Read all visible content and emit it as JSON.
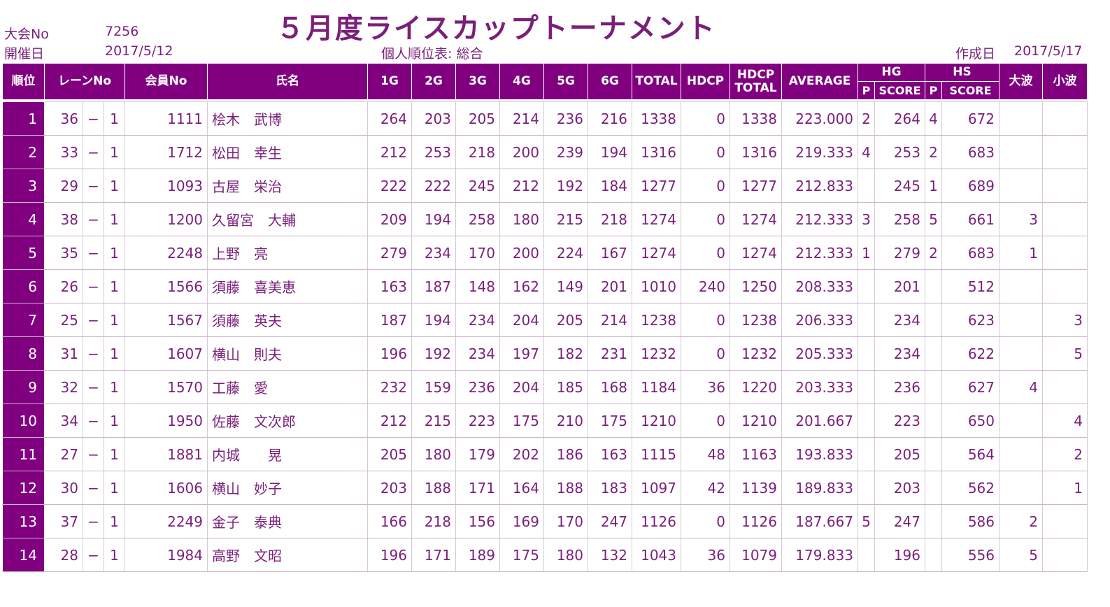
{
  "header": {
    "meet_label": "大会No",
    "meet_value": "7256",
    "date_label": "開催日",
    "date_value": "2017/5/12",
    "title": "５月度ライスカップトーナメント",
    "subtitle": "個人順位表: 総合",
    "created_label": "作成日",
    "created_value": "2017/5/17"
  },
  "columns": {
    "rank": "順位",
    "lane": "レーンNo",
    "member": "会員No",
    "name": "氏名",
    "g1": "1G",
    "g2": "2G",
    "g3": "3G",
    "g4": "4G",
    "g5": "5G",
    "g6": "6G",
    "total": "TOTAL",
    "hdcp": "HDCP",
    "hdcp_total": "HDCP\nTOTAL",
    "average": "AVERAGE",
    "hg": "HG",
    "hs": "HS",
    "p": "P",
    "score": "SCORE",
    "big_wave": "大波",
    "small_wave": "小波"
  },
  "rows": [
    {
      "rank": "1",
      "lane": "36",
      "dash": "−",
      "lane_sub": "1",
      "member": "1111",
      "name": "桧木　武博",
      "g1": "264",
      "g2": "203",
      "g3": "205",
      "g4": "214",
      "g5": "236",
      "g6": "216",
      "total": "1338",
      "hdcp": "0",
      "hdcp_total": "1338",
      "average": "223.000",
      "hg_p": "2",
      "hg_score": "264",
      "hs_p": "4",
      "hs_score": "672",
      "big": "",
      "small": ""
    },
    {
      "rank": "2",
      "lane": "33",
      "dash": "−",
      "lane_sub": "1",
      "member": "1712",
      "name": "松田　幸生",
      "g1": "212",
      "g2": "253",
      "g3": "218",
      "g4": "200",
      "g5": "239",
      "g6": "194",
      "total": "1316",
      "hdcp": "0",
      "hdcp_total": "1316",
      "average": "219.333",
      "hg_p": "4",
      "hg_score": "253",
      "hs_p": "2",
      "hs_score": "683",
      "big": "",
      "small": ""
    },
    {
      "rank": "3",
      "lane": "29",
      "dash": "−",
      "lane_sub": "1",
      "member": "1093",
      "name": "古屋　栄治",
      "g1": "222",
      "g2": "222",
      "g3": "245",
      "g4": "212",
      "g5": "192",
      "g6": "184",
      "total": "1277",
      "hdcp": "0",
      "hdcp_total": "1277",
      "average": "212.833",
      "hg_p": "",
      "hg_score": "245",
      "hs_p": "1",
      "hs_score": "689",
      "big": "",
      "small": ""
    },
    {
      "rank": "4",
      "lane": "38",
      "dash": "−",
      "lane_sub": "1",
      "member": "1200",
      "name": "久留宮　大輔",
      "g1": "209",
      "g2": "194",
      "g3": "258",
      "g4": "180",
      "g5": "215",
      "g6": "218",
      "total": "1274",
      "hdcp": "0",
      "hdcp_total": "1274",
      "average": "212.333",
      "hg_p": "3",
      "hg_score": "258",
      "hs_p": "5",
      "hs_score": "661",
      "big": "3",
      "small": ""
    },
    {
      "rank": "5",
      "lane": "35",
      "dash": "−",
      "lane_sub": "1",
      "member": "2248",
      "name": "上野　亮",
      "g1": "279",
      "g2": "234",
      "g3": "170",
      "g4": "200",
      "g5": "224",
      "g6": "167",
      "total": "1274",
      "hdcp": "0",
      "hdcp_total": "1274",
      "average": "212.333",
      "hg_p": "1",
      "hg_score": "279",
      "hs_p": "2",
      "hs_score": "683",
      "big": "1",
      "small": ""
    },
    {
      "rank": "6",
      "lane": "26",
      "dash": "−",
      "lane_sub": "1",
      "member": "1566",
      "name": "須藤　喜美恵",
      "g1": "163",
      "g2": "187",
      "g3": "148",
      "g4": "162",
      "g5": "149",
      "g6": "201",
      "total": "1010",
      "hdcp": "240",
      "hdcp_total": "1250",
      "average": "208.333",
      "hg_p": "",
      "hg_score": "201",
      "hs_p": "",
      "hs_score": "512",
      "big": "",
      "small": ""
    },
    {
      "rank": "7",
      "lane": "25",
      "dash": "−",
      "lane_sub": "1",
      "member": "1567",
      "name": "須藤　英夫",
      "g1": "187",
      "g2": "194",
      "g3": "234",
      "g4": "204",
      "g5": "205",
      "g6": "214",
      "total": "1238",
      "hdcp": "0",
      "hdcp_total": "1238",
      "average": "206.333",
      "hg_p": "",
      "hg_score": "234",
      "hs_p": "",
      "hs_score": "623",
      "big": "",
      "small": "3"
    },
    {
      "rank": "8",
      "lane": "31",
      "dash": "−",
      "lane_sub": "1",
      "member": "1607",
      "name": "横山　則夫",
      "g1": "196",
      "g2": "192",
      "g3": "234",
      "g4": "197",
      "g5": "182",
      "g6": "231",
      "total": "1232",
      "hdcp": "0",
      "hdcp_total": "1232",
      "average": "205.333",
      "hg_p": "",
      "hg_score": "234",
      "hs_p": "",
      "hs_score": "622",
      "big": "",
      "small": "5"
    },
    {
      "rank": "9",
      "lane": "32",
      "dash": "−",
      "lane_sub": "1",
      "member": "1570",
      "name": "工藤　愛",
      "g1": "232",
      "g2": "159",
      "g3": "236",
      "g4": "204",
      "g5": "185",
      "g6": "168",
      "total": "1184",
      "hdcp": "36",
      "hdcp_total": "1220",
      "average": "203.333",
      "hg_p": "",
      "hg_score": "236",
      "hs_p": "",
      "hs_score": "627",
      "big": "4",
      "small": ""
    },
    {
      "rank": "10",
      "lane": "34",
      "dash": "−",
      "lane_sub": "1",
      "member": "1950",
      "name": "佐藤　文次郎",
      "g1": "212",
      "g2": "215",
      "g3": "223",
      "g4": "175",
      "g5": "210",
      "g6": "175",
      "total": "1210",
      "hdcp": "0",
      "hdcp_total": "1210",
      "average": "201.667",
      "hg_p": "",
      "hg_score": "223",
      "hs_p": "",
      "hs_score": "650",
      "big": "",
      "small": "4"
    },
    {
      "rank": "11",
      "lane": "27",
      "dash": "−",
      "lane_sub": "1",
      "member": "1881",
      "name": "内城　　晃",
      "g1": "205",
      "g2": "180",
      "g3": "179",
      "g4": "202",
      "g5": "186",
      "g6": "163",
      "total": "1115",
      "hdcp": "48",
      "hdcp_total": "1163",
      "average": "193.833",
      "hg_p": "",
      "hg_score": "205",
      "hs_p": "",
      "hs_score": "564",
      "big": "",
      "small": "2"
    },
    {
      "rank": "12",
      "lane": "30",
      "dash": "−",
      "lane_sub": "1",
      "member": "1606",
      "name": "横山　妙子",
      "g1": "203",
      "g2": "188",
      "g3": "171",
      "g4": "164",
      "g5": "188",
      "g6": "183",
      "total": "1097",
      "hdcp": "42",
      "hdcp_total": "1139",
      "average": "189.833",
      "hg_p": "",
      "hg_score": "203",
      "hs_p": "",
      "hs_score": "562",
      "big": "",
      "small": "1"
    },
    {
      "rank": "13",
      "lane": "37",
      "dash": "−",
      "lane_sub": "1",
      "member": "2249",
      "name": "金子　泰典",
      "g1": "166",
      "g2": "218",
      "g3": "156",
      "g4": "169",
      "g5": "170",
      "g6": "247",
      "total": "1126",
      "hdcp": "0",
      "hdcp_total": "1126",
      "average": "187.667",
      "hg_p": "5",
      "hg_score": "247",
      "hs_p": "",
      "hs_score": "586",
      "big": "2",
      "small": ""
    },
    {
      "rank": "14",
      "lane": "28",
      "dash": "−",
      "lane_sub": "1",
      "member": "1984",
      "name": "高野　文昭",
      "g1": "196",
      "g2": "171",
      "g3": "189",
      "g4": "175",
      "g5": "180",
      "g6": "132",
      "total": "1043",
      "hdcp": "36",
      "hdcp_total": "1079",
      "average": "179.833",
      "hg_p": "",
      "hg_score": "196",
      "hs_p": "",
      "hs_score": "556",
      "big": "5",
      "small": ""
    }
  ]
}
